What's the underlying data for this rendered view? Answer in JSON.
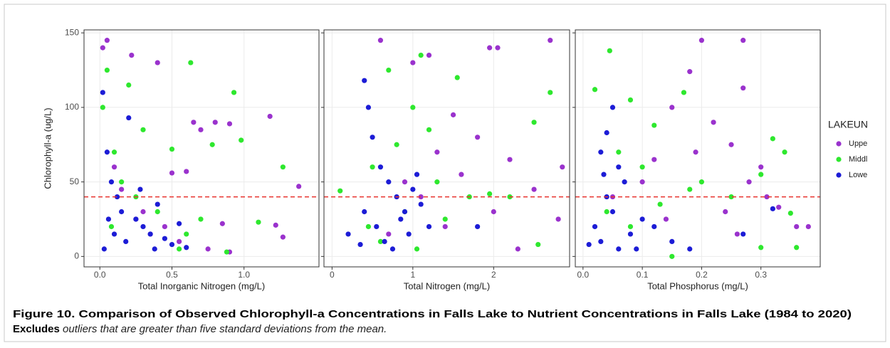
{
  "chart_data": [
    {
      "type": "scatter",
      "xlabel": "Total Inorganic Nitrogen (mg/L)",
      "ylabel": "Chlorophyll-a (ug/L)",
      "xlim": [
        -0.11,
        1.52
      ],
      "xticks": [
        {
          "value": 0,
          "label": "0.0"
        },
        {
          "value": 0.5,
          "label": "0.5"
        },
        {
          "value": 1,
          "label": "1.0"
        }
      ],
      "ylim": [
        -7,
        152
      ],
      "yticks": [
        0,
        50,
        100,
        150
      ],
      "grid": true,
      "reference_line": {
        "value": 40,
        "color": "#e8322d"
      },
      "series": [
        {
          "name": "Uppe",
          "color": "#9a32cd",
          "x": [
            0.02,
            0.05,
            0.22,
            0.4,
            0.65,
            0.7,
            0.8,
            0.9,
            1.18,
            1.38,
            1.22,
            1.27,
            0.5,
            0.6,
            0.3,
            0.45,
            0.55,
            0.75,
            0.85,
            0.1,
            0.15,
            0.25,
            0.35,
            0.9
          ],
          "values": [
            140,
            145,
            135,
            130,
            90,
            85,
            90,
            89,
            94,
            47,
            21,
            13,
            56,
            57,
            30,
            20,
            10,
            5,
            22,
            60,
            45,
            25,
            15,
            3
          ]
        },
        {
          "name": "Middl",
          "color": "#2ee82e",
          "x": [
            0.05,
            0.63,
            0.93,
            1.27,
            0.2,
            0.3,
            0.5,
            0.78,
            0.98,
            1.1,
            0.02,
            0.1,
            0.15,
            0.25,
            0.4,
            0.6,
            0.7,
            0.55,
            0.08,
            0.88
          ],
          "values": [
            125,
            130,
            110,
            60,
            115,
            85,
            72,
            75,
            78,
            23,
            100,
            70,
            50,
            40,
            30,
            15,
            25,
            5,
            20,
            3
          ]
        },
        {
          "name": "Lowe",
          "color": "#1c1cd6",
          "x": [
            0.02,
            0.05,
            0.08,
            0.12,
            0.15,
            0.2,
            0.25,
            0.3,
            0.35,
            0.4,
            0.45,
            0.5,
            0.55,
            0.1,
            0.03,
            0.06,
            0.18,
            0.28,
            0.38,
            0.6
          ],
          "values": [
            110,
            70,
            50,
            40,
            30,
            93,
            25,
            20,
            15,
            35,
            12,
            8,
            22,
            15,
            5,
            25,
            10,
            45,
            5,
            6
          ]
        }
      ]
    },
    {
      "type": "scatter",
      "xlabel": "Total Nitrogen (mg/L)",
      "xlim": [
        -0.1,
        2.94
      ],
      "xticks": [
        0,
        1,
        2
      ],
      "ylim": [
        -7,
        152
      ],
      "yticks": [
        0,
        50,
        100,
        150
      ],
      "grid": true,
      "reference_line": {
        "value": 40,
        "color": "#e8322d"
      },
      "series": [
        {
          "name": "Uppe",
          "color": "#9a32cd",
          "x": [
            0.6,
            1.0,
            1.2,
            1.95,
            2.05,
            2.7,
            1.5,
            1.8,
            2.2,
            2.5,
            2.85,
            2.8,
            1.3,
            1.6,
            0.9,
            1.1,
            1.4,
            2.0,
            0.7,
            2.3
          ],
          "values": [
            145,
            130,
            135,
            140,
            140,
            145,
            95,
            80,
            65,
            45,
            60,
            25,
            70,
            55,
            50,
            40,
            20,
            30,
            15,
            5
          ]
        },
        {
          "name": "Middl",
          "color": "#2ee82e",
          "x": [
            0.7,
            1.1,
            1.55,
            2.7,
            2.5,
            2.55,
            1.0,
            1.2,
            0.8,
            0.5,
            0.1,
            0.9,
            1.3,
            1.7,
            1.95,
            0.6,
            1.05,
            1.4,
            2.2,
            0.45
          ],
          "values": [
            125,
            135,
            120,
            110,
            90,
            8,
            100,
            85,
            75,
            60,
            44,
            30,
            50,
            40,
            42,
            10,
            5,
            25,
            40,
            20
          ]
        },
        {
          "name": "Lowe",
          "color": "#1c1cd6",
          "x": [
            0.4,
            0.45,
            0.5,
            0.6,
            0.7,
            0.8,
            0.9,
            1.0,
            0.55,
            0.65,
            0.75,
            0.85,
            0.95,
            1.1,
            1.2,
            1.8,
            0.2,
            0.35,
            1.05,
            0.4
          ],
          "values": [
            118,
            100,
            80,
            60,
            50,
            40,
            30,
            45,
            20,
            10,
            5,
            25,
            15,
            35,
            20,
            20,
            15,
            8,
            55,
            30
          ]
        }
      ]
    },
    {
      "type": "scatter",
      "xlabel": "Total Phosphorus (mg/L)",
      "xlim": [
        -0.013,
        0.4
      ],
      "xticks": [
        {
          "value": 0,
          "label": "0.0"
        },
        {
          "value": 0.1,
          "label": "0.1"
        },
        {
          "value": 0.2,
          "label": "0.2"
        },
        {
          "value": 0.3,
          "label": "0.3"
        }
      ],
      "ylim": [
        -7,
        152
      ],
      "yticks": [
        0,
        50,
        100,
        150
      ],
      "grid": true,
      "reference_line": {
        "value": 40,
        "color": "#e8322d"
      },
      "series": [
        {
          "name": "Uppe",
          "color": "#9a32cd",
          "x": [
            0.2,
            0.27,
            0.27,
            0.18,
            0.15,
            0.22,
            0.25,
            0.3,
            0.33,
            0.36,
            0.38,
            0.12,
            0.1,
            0.28,
            0.24,
            0.31,
            0.19,
            0.05,
            0.14,
            0.26
          ],
          "values": [
            145,
            145,
            113,
            124,
            100,
            90,
            75,
            60,
            33,
            20,
            20,
            65,
            50,
            50,
            30,
            40,
            70,
            40,
            25,
            15
          ]
        },
        {
          "name": "Middl",
          "color": "#2ee82e",
          "x": [
            0.045,
            0.02,
            0.08,
            0.17,
            0.12,
            0.32,
            0.34,
            0.3,
            0.35,
            0.36,
            0.3,
            0.15,
            0.1,
            0.06,
            0.2,
            0.25,
            0.04,
            0.08,
            0.13,
            0.18
          ],
          "values": [
            138,
            112,
            105,
            110,
            88,
            79,
            70,
            55,
            29,
            6,
            6,
            0,
            60,
            70,
            50,
            40,
            30,
            20,
            35,
            45
          ]
        },
        {
          "name": "Lowe",
          "color": "#1c1cd6",
          "x": [
            0.05,
            0.04,
            0.03,
            0.06,
            0.02,
            0.03,
            0.04,
            0.05,
            0.07,
            0.08,
            0.09,
            0.1,
            0.12,
            0.15,
            0.18,
            0.27,
            0.32,
            0.06,
            0.01,
            0.035
          ],
          "values": [
            100,
            83,
            70,
            60,
            20,
            10,
            40,
            30,
            50,
            15,
            5,
            25,
            20,
            10,
            5,
            15,
            32,
            5,
            8,
            55
          ]
        }
      ]
    }
  ],
  "legend": {
    "title": "LAKEUN"
  },
  "caption": {
    "title": "Figure 10. Comparison of Observed Chlorophyll-a Concentrations in Falls Lake to Nutrient Concentrations in Falls Lake (1984 to 2020)",
    "note_bold": "Excludes",
    "note_italic": "outliers that are greater than five standard deviations from the mean."
  }
}
